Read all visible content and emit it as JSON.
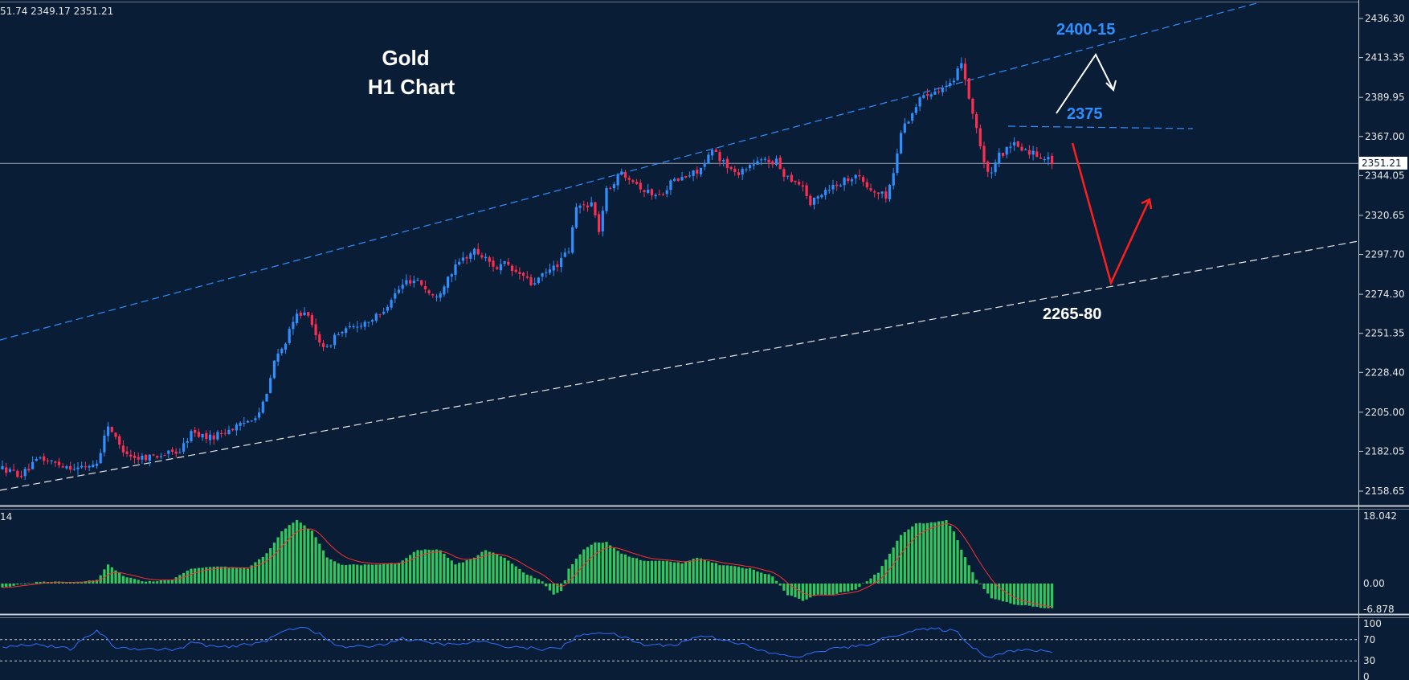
{
  "header": {
    "ohlc_text": "51.74 2349.17 2351.21"
  },
  "title": {
    "line1": "Gold",
    "line2": "H1 Chart"
  },
  "annotations": {
    "resistance": "2400-15",
    "level": "2375",
    "support": "2265-80"
  },
  "colors": {
    "background": "#0a1d36",
    "bull": "#2f8fff",
    "bear": "#ff2d4f",
    "macd_hist": "#32c75c",
    "macd_signal": "#ff3030",
    "rsi": "#2f6fff",
    "upper_channel": "#2f8fff",
    "lower_channel": "#e8e8e8",
    "accent_blue": "#2f8fff",
    "arrow_red": "#ff1e1e",
    "arrow_white": "#ffffff"
  },
  "price_axis": {
    "ticks": [
      "2436.30",
      "2413.35",
      "2389.95",
      "2367.00",
      "2344.05",
      "2320.65",
      "2297.70",
      "2274.30",
      "2251.35",
      "2228.40",
      "2205.00",
      "2182.05",
      "2158.65"
    ],
    "current": "2351.21"
  },
  "macd_axis": {
    "ticks": [
      "18.042",
      "0.00",
      "-6.878"
    ],
    "label": "14"
  },
  "rsi_axis": {
    "ticks": [
      "100",
      "70",
      "30",
      "0"
    ]
  },
  "chart_data": {
    "type": "candlestick",
    "symbol": "Gold",
    "timeframe": "H1",
    "ylim": [
      2150,
      2445
    ],
    "current_price": 2351.21,
    "levels": {
      "resistance_zone": [
        2400,
        2415
      ],
      "horizontal": 2375,
      "support_zone": [
        2265,
        2280
      ]
    },
    "path": [
      [
        0,
        2172
      ],
      [
        5,
        2168
      ],
      [
        10,
        2178
      ],
      [
        14,
        2175
      ],
      [
        20,
        2172
      ],
      [
        25,
        2175
      ],
      [
        28,
        2198
      ],
      [
        31,
        2185
      ],
      [
        35,
        2178
      ],
      [
        42,
        2180
      ],
      [
        47,
        2182
      ],
      [
        50,
        2193
      ],
      [
        55,
        2190
      ],
      [
        60,
        2195
      ],
      [
        63,
        2197
      ],
      [
        68,
        2205
      ],
      [
        70,
        2215
      ],
      [
        72,
        2235
      ],
      [
        74,
        2242
      ],
      [
        78,
        2262
      ],
      [
        80,
        2265
      ],
      [
        83,
        2250
      ],
      [
        86,
        2242
      ],
      [
        88,
        2250
      ],
      [
        90,
        2252
      ],
      [
        93,
        2255
      ],
      [
        96,
        2258
      ],
      [
        100,
        2262
      ],
      [
        103,
        2272
      ],
      [
        107,
        2282
      ],
      [
        110,
        2283
      ],
      [
        113,
        2275
      ],
      [
        115,
        2272
      ],
      [
        118,
        2285
      ],
      [
        122,
        2295
      ],
      [
        125,
        2300
      ],
      [
        128,
        2295
      ],
      [
        131,
        2290
      ],
      [
        133,
        2292
      ],
      [
        135,
        2288
      ],
      [
        138,
        2285
      ],
      [
        140,
        2280
      ],
      [
        143,
        2285
      ],
      [
        147,
        2292
      ],
      [
        150,
        2300
      ],
      [
        152,
        2325
      ],
      [
        156,
        2328
      ],
      [
        158,
        2312
      ],
      [
        160,
        2335
      ],
      [
        164,
        2346
      ],
      [
        167,
        2342
      ],
      [
        170,
        2335
      ],
      [
        174,
        2332
      ],
      [
        177,
        2340
      ],
      [
        182,
        2344
      ],
      [
        186,
        2350
      ],
      [
        188,
        2359
      ],
      [
        191,
        2352
      ],
      [
        194,
        2345
      ],
      [
        198,
        2350
      ],
      [
        202,
        2353
      ],
      [
        205,
        2352
      ],
      [
        207,
        2345
      ],
      [
        212,
        2338
      ],
      [
        214,
        2327
      ],
      [
        218,
        2336
      ],
      [
        222,
        2340
      ],
      [
        226,
        2345
      ],
      [
        230,
        2335
      ],
      [
        234,
        2332
      ],
      [
        236,
        2345
      ],
      [
        238,
        2370
      ],
      [
        242,
        2385
      ],
      [
        244,
        2392
      ],
      [
        248,
        2395
      ],
      [
        252,
        2398
      ],
      [
        254,
        2412
      ],
      [
        256,
        2390
      ],
      [
        258,
        2372
      ],
      [
        260,
        2350
      ],
      [
        262,
        2344
      ],
      [
        264,
        2356
      ],
      [
        268,
        2362
      ],
      [
        272,
        2358
      ],
      [
        276,
        2355
      ],
      [
        278,
        2352
      ]
    ],
    "macd_path": [
      [
        0,
        -1
      ],
      [
        10,
        0.5
      ],
      [
        20,
        0.3
      ],
      [
        25,
        1
      ],
      [
        28,
        5
      ],
      [
        32,
        2
      ],
      [
        38,
        0.5
      ],
      [
        45,
        1
      ],
      [
        50,
        4
      ],
      [
        58,
        4.5
      ],
      [
        65,
        4
      ],
      [
        70,
        8
      ],
      [
        74,
        14
      ],
      [
        78,
        17
      ],
      [
        82,
        14
      ],
      [
        86,
        7
      ],
      [
        90,
        5
      ],
      [
        98,
        5
      ],
      [
        105,
        5.5
      ],
      [
        110,
        9
      ],
      [
        116,
        9
      ],
      [
        120,
        5
      ],
      [
        125,
        7
      ],
      [
        128,
        9
      ],
      [
        133,
        7
      ],
      [
        138,
        3
      ],
      [
        143,
        0.5
      ],
      [
        146,
        -3
      ],
      [
        148,
        -2
      ],
      [
        150,
        4
      ],
      [
        154,
        9
      ],
      [
        157,
        11
      ],
      [
        160,
        11
      ],
      [
        164,
        8
      ],
      [
        170,
        6
      ],
      [
        176,
        6
      ],
      [
        180,
        5.5
      ],
      [
        184,
        7
      ],
      [
        190,
        5
      ],
      [
        198,
        4
      ],
      [
        204,
        2
      ],
      [
        208,
        -3
      ],
      [
        212,
        -4.5
      ],
      [
        216,
        -3
      ],
      [
        220,
        -3
      ],
      [
        226,
        -1.5
      ],
      [
        232,
        3
      ],
      [
        238,
        13
      ],
      [
        242,
        16
      ],
      [
        248,
        16.5
      ],
      [
        250,
        17
      ],
      [
        252,
        14
      ],
      [
        254,
        9
      ],
      [
        258,
        1
      ],
      [
        262,
        -4
      ],
      [
        268,
        -5.5
      ],
      [
        272,
        -6
      ],
      [
        276,
        -6.5
      ]
    ],
    "rsi_path": [
      [
        0,
        55
      ],
      [
        8,
        62
      ],
      [
        18,
        52
      ],
      [
        25,
        88
      ],
      [
        30,
        55
      ],
      [
        40,
        52
      ],
      [
        47,
        52
      ],
      [
        50,
        65
      ],
      [
        55,
        58
      ],
      [
        60,
        55
      ],
      [
        70,
        68
      ],
      [
        75,
        88
      ],
      [
        80,
        95
      ],
      [
        84,
        80
      ],
      [
        88,
        60
      ],
      [
        92,
        55
      ],
      [
        100,
        60
      ],
      [
        106,
        72
      ],
      [
        112,
        65
      ],
      [
        120,
        60
      ],
      [
        127,
        68
      ],
      [
        130,
        60
      ],
      [
        138,
        55
      ],
      [
        144,
        52
      ],
      [
        148,
        55
      ],
      [
        152,
        75
      ],
      [
        158,
        85
      ],
      [
        163,
        78
      ],
      [
        170,
        60
      ],
      [
        178,
        60
      ],
      [
        185,
        78
      ],
      [
        190,
        72
      ],
      [
        196,
        62
      ],
      [
        200,
        50
      ],
      [
        207,
        40
      ],
      [
        212,
        38
      ],
      [
        216,
        48
      ],
      [
        222,
        55
      ],
      [
        228,
        58
      ],
      [
        236,
        78
      ],
      [
        242,
        88
      ],
      [
        248,
        90
      ],
      [
        253,
        85
      ],
      [
        256,
        60
      ],
      [
        260,
        42
      ],
      [
        262,
        38
      ],
      [
        266,
        48
      ],
      [
        272,
        50
      ],
      [
        277,
        48
      ]
    ]
  }
}
